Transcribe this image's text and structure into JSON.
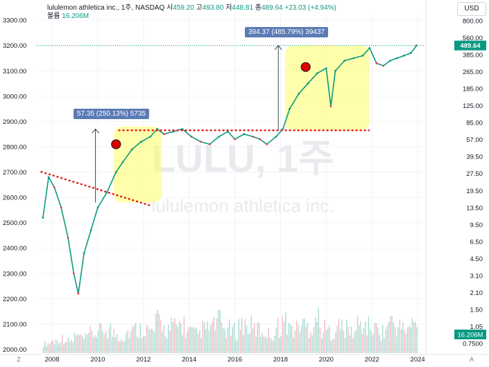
{
  "header": {
    "symbol_title": "lululemon athletica inc., 1주, NASDAQ",
    "open_label": "시",
    "open_value": "459.20",
    "high_label": "고",
    "high_value": "493.80",
    "low_label": "저",
    "low_value": "448.81",
    "close_label": "종",
    "close_value": "489.64",
    "change": "+23.03 (+4.94%)",
    "volume_label": "볼륨",
    "volume_value": "16.206M"
  },
  "currency_button": "USD",
  "watermark": {
    "line1": "LULU, 1주",
    "line2": "lululemon athletica inc."
  },
  "corner_left": "Z",
  "corner_right": "A",
  "chart_data": {
    "type": "line",
    "left_axis": {
      "ticks": [
        "3300.00",
        "3200.00",
        "3100.00",
        "3000.00",
        "2900.00",
        "2800.00",
        "2700.00",
        "2600.00",
        "2500.00",
        "2400.00",
        "2300.00",
        "2200.00",
        "2100.00",
        "2000.00"
      ]
    },
    "right_axis": {
      "scale": "log",
      "ticks": [
        "800.00",
        "560.00",
        "385.00",
        "265.00",
        "185.00",
        "125.00",
        "85.00",
        "57.00",
        "39.50",
        "27.50",
        "19.50",
        "13.50",
        "9.50",
        "6.50",
        "4.50",
        "3.10",
        "2.10",
        "1.50",
        "1.05",
        "0.7500"
      ]
    },
    "x_ticks": [
      "2008",
      "2010",
      "2012",
      "2014",
      "2016",
      "2018",
      "2020",
      "2022",
      "2024"
    ],
    "price_series": {
      "name": "LULU",
      "x": [
        2007.6,
        2007.85,
        2008.1,
        2008.4,
        2008.7,
        2008.95,
        2009.15,
        2009.4,
        2009.7,
        2010.0,
        2010.4,
        2010.8,
        2011.1,
        2011.5,
        2011.9,
        2012.3,
        2012.6,
        2012.9,
        2013.3,
        2013.7,
        2014.1,
        2014.5,
        2014.9,
        2015.3,
        2015.7,
        2016.0,
        2016.4,
        2016.8,
        2017.1,
        2017.4,
        2017.8,
        2018.1,
        2018.4,
        2018.8,
        2019.2,
        2019.6,
        2020.0,
        2020.2,
        2020.4,
        2020.8,
        2021.2,
        2021.6,
        2021.9,
        2022.2,
        2022.5,
        2022.8,
        2023.1,
        2023.4,
        2023.7,
        2023.95
      ],
      "y": [
        2520,
        2680,
        2640,
        2560,
        2440,
        2300,
        2220,
        2380,
        2470,
        2560,
        2620,
        2700,
        2740,
        2790,
        2820,
        2840,
        2870,
        2850,
        2860,
        2870,
        2840,
        2820,
        2810,
        2840,
        2860,
        2830,
        2850,
        2840,
        2830,
        2810,
        2840,
        2870,
        2950,
        3010,
        3050,
        3090,
        3110,
        2960,
        3100,
        3140,
        3150,
        3160,
        3190,
        3130,
        3120,
        3140,
        3150,
        3160,
        3170,
        3200
      ]
    },
    "volume_series": {
      "name": "볼륨",
      "last_value": "16.206M",
      "values": [
        3,
        4,
        5,
        4,
        6,
        5,
        7,
        8,
        9,
        7,
        6,
        8,
        9,
        10,
        8,
        12,
        9,
        10,
        11,
        8,
        7,
        9,
        10,
        12,
        9,
        8,
        11,
        10,
        9,
        8,
        7,
        10,
        12,
        9,
        11,
        10,
        14,
        9,
        8,
        10,
        9,
        8,
        11,
        10,
        9,
        8,
        12,
        10,
        9,
        11
      ]
    },
    "last_price_label": "489.64",
    "annotations": [
      {
        "text": "57.35 (250.13%) 5735"
      },
      {
        "text": "394.37 (485.79%) 39437"
      }
    ],
    "reference_lines": [
      {
        "kind": "horizontal-dotted",
        "y": 2865,
        "x_start": 2010.9,
        "x_end": 2021.9,
        "color": "#e0191b"
      },
      {
        "kind": "trend-dotted",
        "x": [
          2007.5,
          2012.3
        ],
        "y": [
          2702,
          2568
        ],
        "color": "#e0191b"
      },
      {
        "kind": "last-price",
        "y": 3200,
        "color": "#089981"
      }
    ],
    "highlight_boxes": [
      {
        "x": [
          2010.7,
          2012.8
        ],
        "y": [
          2580,
          2880
        ],
        "color": "#ffff66"
      },
      {
        "x": [
          2018.2,
          2021.9
        ],
        "y": [
          2865,
          3200
        ],
        "color": "#ffff66"
      }
    ],
    "markers": [
      {
        "x": 2010.8,
        "y": 2810,
        "color": "#e00000"
      },
      {
        "x": 2019.1,
        "y": 3115,
        "color": "#e00000"
      }
    ],
    "measure_arrows": [
      {
        "x": 2009.9,
        "y_from": 2580,
        "y_to": 2870
      },
      {
        "x": 2017.9,
        "y_from": 2865,
        "y_to": 3200
      }
    ],
    "colors": {
      "up": "#089981",
      "down": "#f23645",
      "background": "#ffffff"
    }
  }
}
